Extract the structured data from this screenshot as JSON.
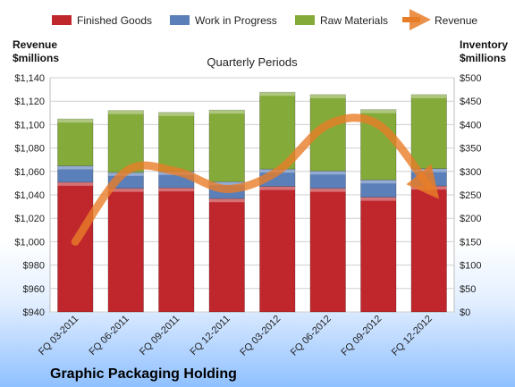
{
  "chart_data": {
    "type": "bar",
    "stacked": true,
    "title": "Quarterly Periods",
    "footer_title": "Graphic Packaging Holding",
    "left_axis": {
      "label_line1": "Revenue",
      "label_line2": "$millions",
      "ylim": [
        940,
        1140
      ],
      "ticks": [
        940,
        960,
        980,
        1000,
        1020,
        1040,
        1060,
        1080,
        1100,
        1120,
        1140
      ],
      "tick_labels": [
        "$940",
        "$960",
        "$980",
        "$1,000",
        "$1,020",
        "$1,040",
        "$1,060",
        "$1,080",
        "$1,100",
        "$1,120",
        "$1,140"
      ]
    },
    "right_axis": {
      "label_line1": "Inventory",
      "label_line2": "$millions",
      "ylim": [
        0,
        500
      ],
      "ticks": [
        0,
        50,
        100,
        150,
        200,
        250,
        300,
        350,
        400,
        450,
        500
      ],
      "tick_labels": [
        "$0",
        "$50",
        "$100",
        "$150",
        "$200",
        "$250",
        "$300",
        "$350",
        "$400",
        "$450",
        "$500"
      ]
    },
    "categories": [
      "FQ 03-2011",
      "FQ 06-2011",
      "FQ 09-2011",
      "FQ 12-2011",
      "FQ 03-2012",
      "FQ 06-2012",
      "FQ 09-2012",
      "FQ 12-2012"
    ],
    "series": [
      {
        "name": "Finished Goods",
        "axis": "right",
        "color": "#c0272d",
        "values": [
          277,
          264,
          265,
          242,
          268,
          264,
          245,
          269
        ]
      },
      {
        "name": "Work in Progress",
        "axis": "right",
        "color": "#5b7fb8",
        "values": [
          35,
          34,
          35,
          36,
          37,
          37,
          37,
          37
        ]
      },
      {
        "name": "Raw Materials",
        "axis": "right",
        "color": "#84aa3a",
        "values": [
          100,
          132,
          126,
          153,
          164,
          163,
          150,
          158
        ]
      },
      {
        "name": "Revenue",
        "axis": "left",
        "type": "line",
        "color": "#e87d28",
        "values": [
          1000,
          1060,
          1060,
          1045,
          1060,
          1100,
          1100,
          1047
        ]
      }
    ],
    "grid": true,
    "legend_position": "top"
  }
}
